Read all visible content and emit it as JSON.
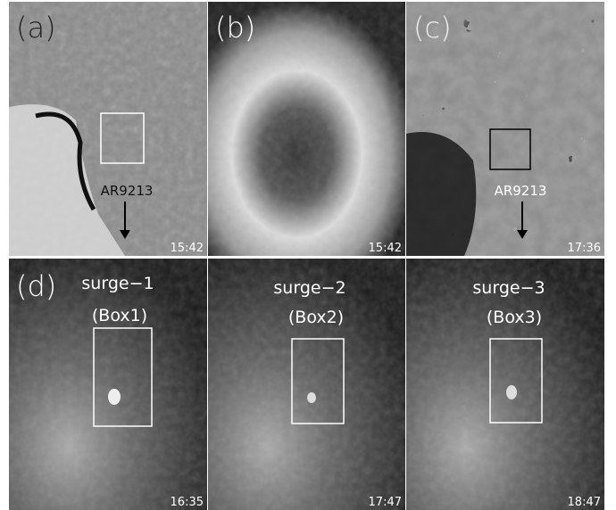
{
  "panels": [
    {
      "label": "(a)",
      "time": "15:42",
      "annotation": "AR9213"
    },
    {
      "label": "(b)",
      "time": "15:42"
    },
    {
      "label": "(c)",
      "time": "17:36",
      "annotation": "AR9213"
    }
  ],
  "bottom": {
    "label": "(d)",
    "panels": [
      {
        "title": "surge−1",
        "box": "(Box1)",
        "time": "16:35"
      },
      {
        "title": "surge−2",
        "box": "(Box2)",
        "time": "17:47"
      },
      {
        "title": "surge−3",
        "box": "(Box3)",
        "time": "18:47"
      }
    ]
  }
}
